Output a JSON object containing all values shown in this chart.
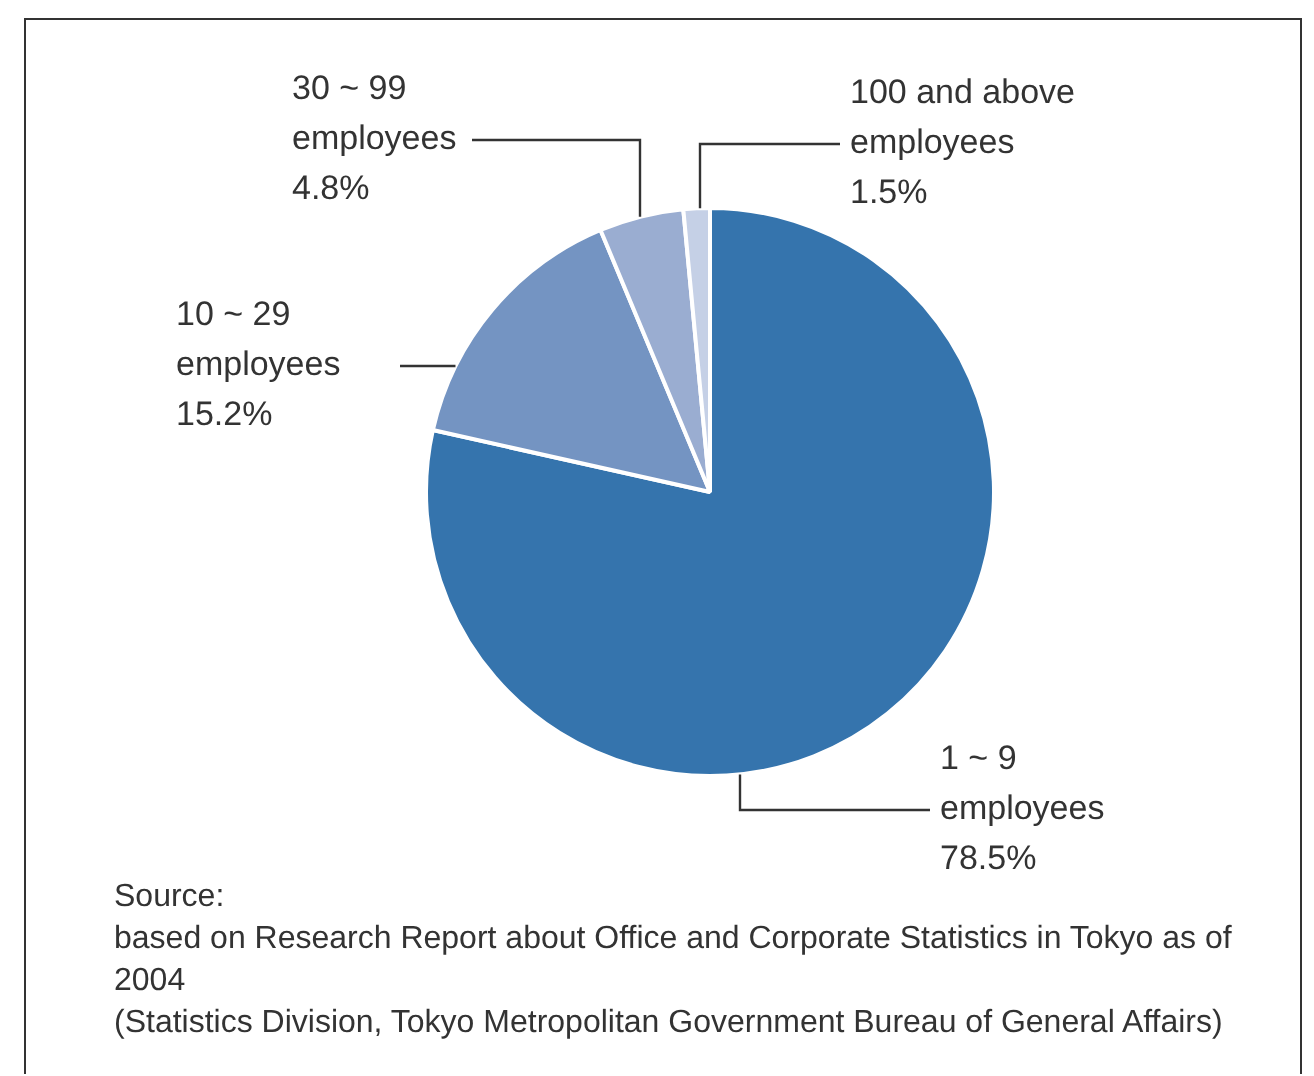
{
  "chart_data": {
    "type": "pie",
    "categories": [
      "1 ~ 9 employees",
      "10 ~ 29 employees",
      "30 ~ 99 employees",
      "100 and above employees"
    ],
    "values": [
      78.5,
      15.2,
      4.8,
      1.5
    ],
    "value_labels": [
      "78.5%",
      "15.2%",
      "4.8%",
      "1.5%"
    ],
    "colors": [
      "#3574ad",
      "#7494c2",
      "#9aadd1",
      "#c5d0e6"
    ],
    "legend": false,
    "annotations": [
      "Source:",
      "based on Research Report about Office and Corporate Statistics in Tokyo as of 2004",
      "(Statistics Division, Tokyo Metropolitan Government Bureau of General Affairs)"
    ]
  }
}
